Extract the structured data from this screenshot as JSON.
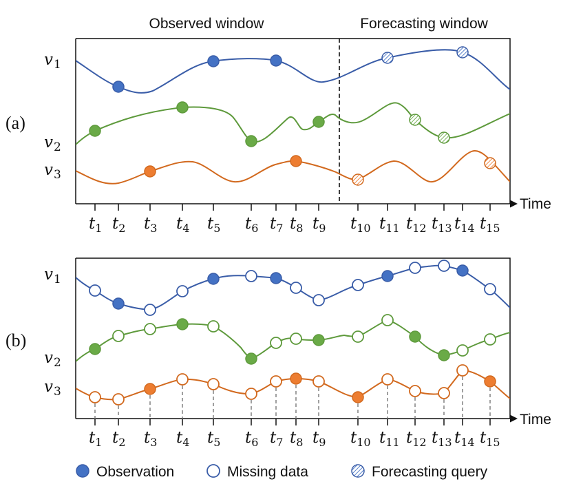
{
  "panel_a": {
    "label": "(a)",
    "observed_window": "Observed window",
    "forecasting_window": "Forecasting window",
    "time_label": "Time"
  },
  "panel_b": {
    "label": "(b)",
    "time_label": "Time"
  },
  "variables": [
    {
      "base": "v",
      "sub": "1"
    },
    {
      "base": "v",
      "sub": "2"
    },
    {
      "base": "v",
      "sub": "3"
    }
  ],
  "ticks": [
    {
      "base": "t",
      "sub": "1"
    },
    {
      "base": "t",
      "sub": "2"
    },
    {
      "base": "t",
      "sub": "3"
    },
    {
      "base": "t",
      "sub": "4"
    },
    {
      "base": "t",
      "sub": "5"
    },
    {
      "base": "t",
      "sub": "6"
    },
    {
      "base": "t",
      "sub": "7"
    },
    {
      "base": "t",
      "sub": "8"
    },
    {
      "base": "t",
      "sub": "9"
    },
    {
      "base": "t",
      "sub": "10"
    },
    {
      "base": "t",
      "sub": "11"
    },
    {
      "base": "t",
      "sub": "12"
    },
    {
      "base": "t",
      "sub": "13"
    },
    {
      "base": "t",
      "sub": "14"
    },
    {
      "base": "t",
      "sub": "15"
    }
  ],
  "legend": {
    "observation": "Observation",
    "missing": "Missing data",
    "query": "Forecasting query"
  },
  "colors": {
    "v1": "#3a5da8",
    "v1_fill": "#4472c4",
    "v2": "#5e9a3c",
    "v2_fill": "#6aaa47",
    "v3": "#d2691e",
    "v3_fill": "#ed7d31"
  },
  "panel_a_points": {
    "v1": {
      "observation": [
        2,
        5,
        7
      ],
      "query": [
        11,
        14
      ]
    },
    "v2": {
      "observation": [
        1,
        4,
        6,
        9
      ],
      "query": [
        12,
        13
      ]
    },
    "v3": {
      "observation": [
        3,
        8
      ],
      "query": [
        10,
        15
      ]
    }
  },
  "panel_b_points": {
    "v1": {
      "observation": [
        2,
        5,
        7,
        11,
        14
      ],
      "missing": [
        1,
        3,
        4,
        6,
        8,
        9,
        10,
        12,
        13,
        15
      ]
    },
    "v2": {
      "observation": [
        1,
        4,
        6,
        9,
        12,
        13
      ],
      "missing": [
        2,
        3,
        5,
        7,
        8,
        10,
        11,
        14,
        15
      ]
    },
    "v3": {
      "observation": [
        3,
        8,
        10,
        15
      ],
      "missing": [
        1,
        2,
        4,
        5,
        6,
        7,
        9,
        11,
        12,
        13,
        14
      ]
    }
  }
}
